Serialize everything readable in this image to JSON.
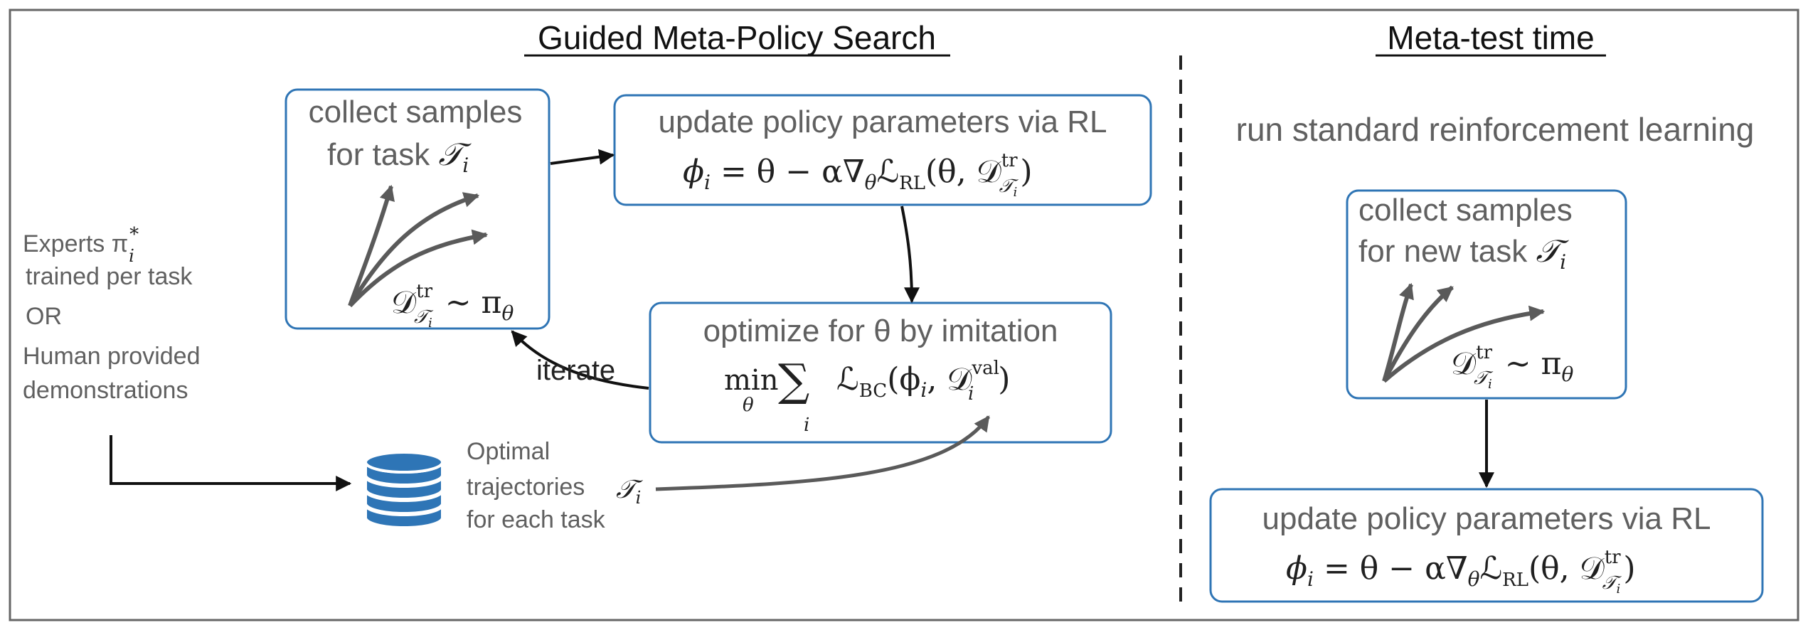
{
  "left_panel": {
    "title": "Guided Meta-Policy Search",
    "collect_box": {
      "line1": "collect samples",
      "line2": "for task ",
      "task_symbol": "𝒯",
      "task_sub": "i",
      "dataset": "𝒟",
      "dataset_sup": "tr",
      "dataset_sub_T": "𝒯",
      "dataset_sub_i": "i",
      "dist": "∼ π",
      "dist_sub": "θ"
    },
    "update_box": {
      "line1": "update policy parameters via RL",
      "eq_lhs": "ϕ",
      "eq_lhs_sub": "i",
      "eq_mid": " = θ − α∇",
      "eq_grad_sub": "θ",
      "eq_loss": "ℒ",
      "eq_loss_sub": "RL",
      "eq_args": "(θ, 𝒟",
      "eq_args_sup": "tr",
      "eq_args_sub_T": "𝒯",
      "eq_args_sub_i": "i",
      "eq_close": ")"
    },
    "optimize_box": {
      "line1": "optimize for θ  by imitation",
      "min": "min",
      "min_sub": "θ",
      "sum": "∑",
      "sum_sub": "i",
      "loss": "ℒ",
      "loss_sub": "BC",
      "args": "(ϕ",
      "args_sub": "i",
      "args2": ", 𝒟",
      "args_sup": "val",
      "args_sub2": "i",
      "close": ")"
    },
    "iterate_label": "iterate",
    "experts": {
      "line1": "Experts  π",
      "star": "*",
      "sub": "i",
      "line2": "trained per task",
      "or": "OR",
      "line3": "Human provided",
      "line4": "demonstrations"
    },
    "optimal": {
      "line1": "Optimal",
      "line2": "trajectories",
      "line3": "for each task",
      "task_symbol": "𝒯",
      "task_sub": "i"
    }
  },
  "right_panel": {
    "title": "Meta-test time",
    "subtitle": "run standard reinforcement learning",
    "collect_box": {
      "line1": "collect samples",
      "line2": "for new task  ",
      "task_symbol": "𝒯",
      "task_sub": "i",
      "dataset": "𝒟",
      "dataset_sup": "tr",
      "dataset_sub_T": "𝒯",
      "dataset_sub_i": "i",
      "dist": "∼ π",
      "dist_sub": "θ"
    },
    "update_box": {
      "line1": "update policy parameters via RL",
      "eq_lhs": "ϕ",
      "eq_lhs_sub": "i",
      "eq_mid": " = θ − α∇",
      "eq_grad_sub": "θ",
      "eq_loss": "ℒ",
      "eq_loss_sub": "RL",
      "eq_args": "(θ, 𝒟",
      "eq_args_sup": "tr",
      "eq_args_sub_T": "𝒯",
      "eq_args_sub_i": "i",
      "eq_close": ")"
    }
  },
  "colors": {
    "box_border": "#2f75b5",
    "text": "#606060",
    "math": "#202020",
    "database": "#2e75b6",
    "curve": "#5a5a5a"
  }
}
